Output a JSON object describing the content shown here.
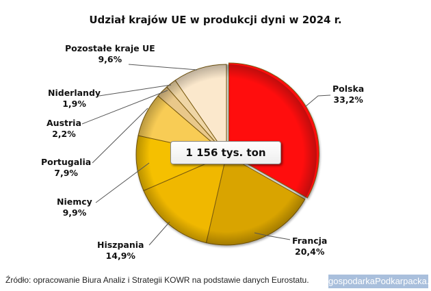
{
  "chart_data": {
    "type": "pie",
    "title": "Udział krajów UE w produkcji dyni w 2024 r.",
    "center_label": "1 156 tys. ton",
    "categories": [
      "Polska",
      "Francja",
      "Hiszpania",
      "Niemcy",
      "Portugalia",
      "Austria",
      "Niderlandy",
      "Pozostałe kraje UE"
    ],
    "values": [
      33.2,
      20.4,
      14.9,
      9.9,
      7.9,
      2.2,
      1.9,
      9.6
    ],
    "value_labels": [
      "33,2%",
      "20,4%",
      "14,9%",
      "9,9%",
      "7,9%",
      "2,2%",
      "1,9%",
      "9,6%"
    ],
    "colors": [
      "#ff1010",
      "#d9a400",
      "#f0b800",
      "#f5c000",
      "#f8cc55",
      "#e9c88a",
      "#efd6a6",
      "#fbe8cc"
    ],
    "unit": "%",
    "exploded": [
      "Polska"
    ],
    "legend": "none (leader-line labels)"
  },
  "labels": {
    "polska": {
      "name": "Polska",
      "value": "33,2%"
    },
    "francja": {
      "name": "Francja",
      "value": "20,4%"
    },
    "hiszpania": {
      "name": "Hiszpania",
      "value": "14,9%"
    },
    "niemcy": {
      "name": "Niemcy",
      "value": "9,9%"
    },
    "portugalia": {
      "name": "Portugalia",
      "value": "7,9%"
    },
    "austria": {
      "name": "Austria",
      "value": "2,2%"
    },
    "niderlandy": {
      "name": "Niderlandy",
      "value": "1,9%"
    },
    "pozostale": {
      "name": "Pozostałe kraje UE",
      "value": "9,6%"
    }
  },
  "footer": {
    "source": "Źródło: opracowanie Biura Analiz i Strategii KOWR na podstawie danych Eurostatu.",
    "watermark": "gospodarkaPodkarpacka.pl"
  }
}
